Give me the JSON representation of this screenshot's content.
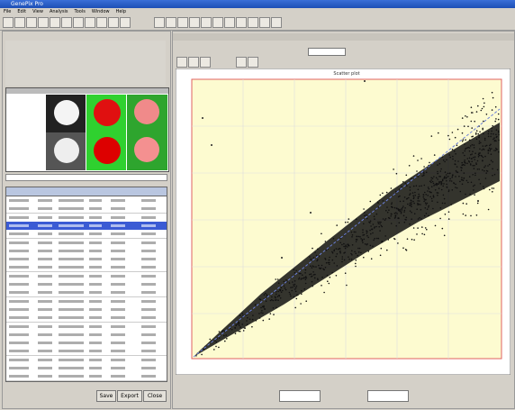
{
  "window": {
    "title": "GenePix Pro"
  },
  "menu": [
    "File",
    "Edit",
    "View",
    "Analysis",
    "Tools",
    "Window",
    "Help"
  ],
  "plot": {
    "title": "Scatter plot"
  },
  "buttons": [
    "Save",
    "Export",
    "Close"
  ]
}
